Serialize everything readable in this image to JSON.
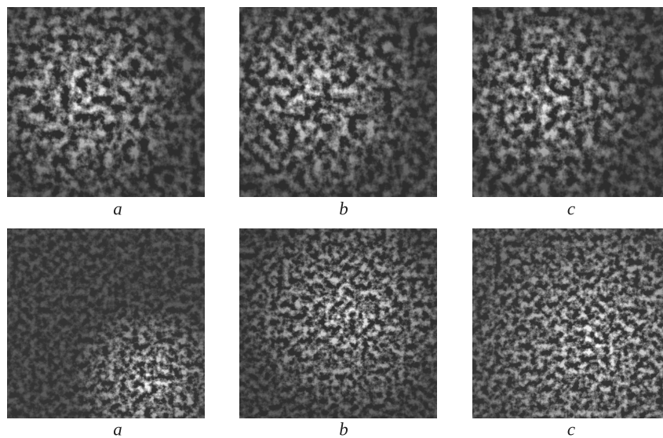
{
  "rows": [
    [
      "a",
      "b",
      "c"
    ],
    [
      "a",
      "b",
      "c"
    ]
  ]
}
